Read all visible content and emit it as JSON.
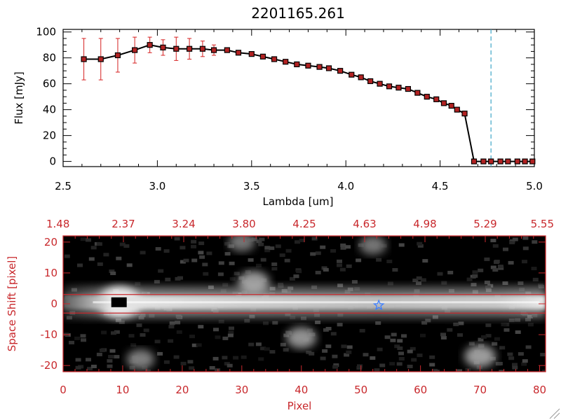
{
  "title": "2201165.261",
  "colors": {
    "axis_black": "#000000",
    "axis_red": "#c8282c",
    "errorbar": "#d62020",
    "marker_fill": "#b22222",
    "dashed_line": "#3fa7c7",
    "star": "#3d7fff"
  },
  "chart_data": [
    {
      "type": "line",
      "xlabel": "Lambda [um]",
      "ylabel": "Flux [mJy]",
      "xlim": [
        2.5,
        5.0
      ],
      "ylim": [
        -4,
        102
      ],
      "x_ticks": [
        "2.5",
        "3.0",
        "3.5",
        "4.0",
        "4.5",
        "5.0"
      ],
      "y_ticks": [
        "0",
        "20",
        "40",
        "60",
        "80",
        "100"
      ],
      "reference_line_x": 4.77,
      "series": [
        {
          "x": [
            2.61,
            2.7,
            2.79,
            2.88,
            2.96,
            3.03,
            3.1,
            3.17,
            3.24,
            3.3,
            3.37,
            3.43,
            3.5,
            3.56,
            3.62,
            3.68,
            3.74,
            3.8,
            3.86,
            3.91,
            3.97,
            4.03,
            4.08,
            4.13,
            4.18,
            4.23,
            4.28,
            4.33,
            4.38,
            4.43,
            4.48,
            4.52,
            4.56,
            4.59,
            4.63,
            4.68,
            4.73,
            4.77,
            4.82,
            4.86,
            4.91,
            4.95,
            4.99
          ],
          "y": [
            79,
            79,
            82,
            86,
            90,
            88,
            87,
            87,
            87,
            86,
            86,
            84,
            83,
            81,
            79,
            77,
            75,
            74,
            73,
            72,
            70,
            67,
            65,
            62,
            60,
            58,
            57,
            56,
            53,
            50,
            48,
            45,
            43,
            40,
            37,
            0,
            0,
            0,
            0,
            0,
            0,
            0,
            0
          ],
          "yerr": [
            16,
            16,
            13,
            10,
            6,
            6,
            9,
            8,
            6,
            4,
            0,
            0,
            0,
            0,
            0,
            0,
            0,
            0,
            0,
            0,
            0,
            0,
            0,
            0,
            0,
            0,
            0,
            0,
            0,
            0,
            0,
            0,
            0,
            0,
            0,
            0,
            0,
            0,
            0,
            0,
            0,
            0,
            0
          ]
        }
      ]
    },
    {
      "type": "heatmap",
      "xlabel": "Pixel",
      "ylabel": "Space Shift [pixel]",
      "xlim": [
        0,
        81
      ],
      "ylim": [
        -22,
        22
      ],
      "x_ticks": [
        "0",
        "10",
        "20",
        "30",
        "40",
        "50",
        "60",
        "70",
        "80"
      ],
      "y_ticks": [
        "-20",
        "-10",
        "0",
        "10",
        "20"
      ],
      "top_ticks": [
        "1.48",
        "2.37",
        "3.24",
        "3.80",
        "4.25",
        "4.63",
        "4.98",
        "5.29",
        "5.55"
      ],
      "aperture_lines_y": [
        3,
        -3
      ],
      "trace_center_y": 0.5,
      "marker_black_square": {
        "x": 9.5,
        "y": 0.5
      },
      "marker_star": {
        "x": 53,
        "y": -0.5
      },
      "blobs": [
        {
          "x": 9.5,
          "y": 0.5,
          "intensity": 1.0
        },
        {
          "x": 32,
          "y": 7,
          "intensity": 0.5
        },
        {
          "x": 40,
          "y": -11,
          "intensity": 0.45
        },
        {
          "x": 70,
          "y": -17,
          "intensity": 0.5
        },
        {
          "x": 13,
          "y": -18,
          "intensity": 0.35
        },
        {
          "x": 52,
          "y": 19,
          "intensity": 0.3
        },
        {
          "x": 30,
          "y": 20,
          "intensity": 0.3
        }
      ]
    }
  ]
}
